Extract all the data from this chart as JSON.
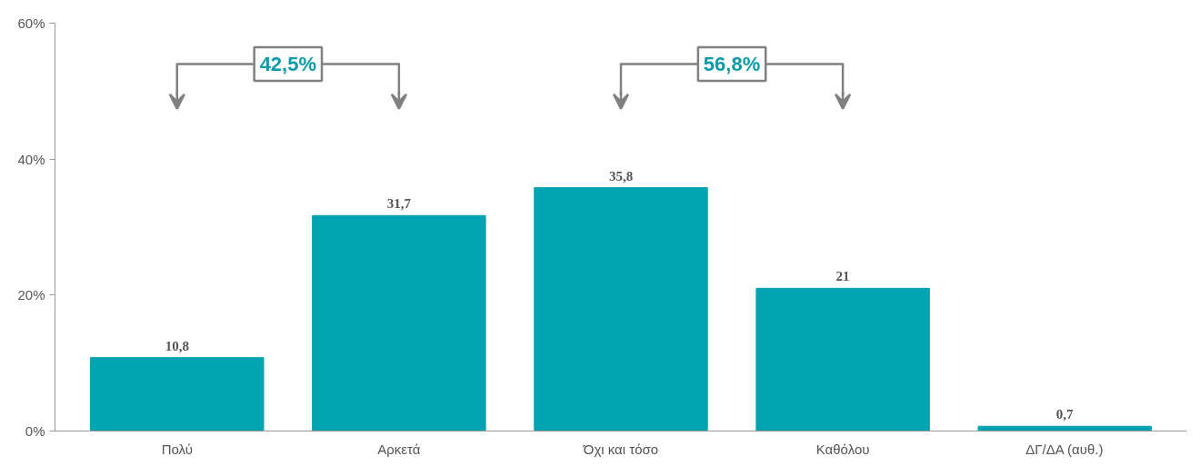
{
  "chart_data": {
    "type": "bar",
    "categories": [
      "Πολύ",
      "Αρκετά",
      "Όχι και τόσο",
      "Καθόλου",
      "ΔΓ/ΔΑ (αυθ.)"
    ],
    "values": [
      10.8,
      31.7,
      35.8,
      21,
      0.7
    ],
    "value_labels": [
      "10,8",
      "31,7",
      "35,8",
      "21",
      "0,7"
    ],
    "color": "#00a3b0",
    "ylim": [
      0,
      60
    ],
    "yticks": [
      {
        "value": 0,
        "label": "0%"
      },
      {
        "value": 20,
        "label": "20%"
      },
      {
        "value": 40,
        "label": "40%"
      },
      {
        "value": 60,
        "label": "60%"
      }
    ],
    "annotations": [
      "42,5%",
      "56,8%"
    ],
    "grid": false
  }
}
